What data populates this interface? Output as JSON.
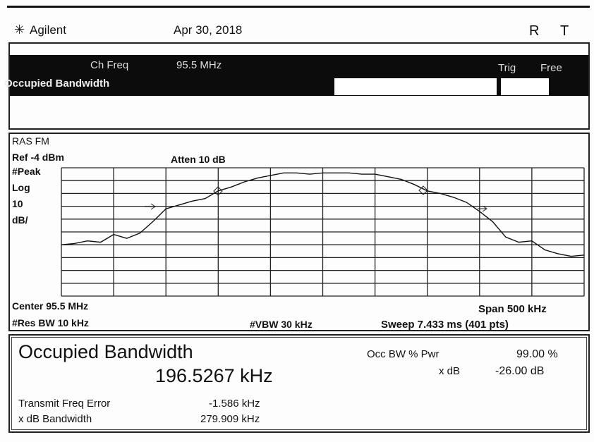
{
  "header": {
    "brand": "Agilent",
    "date": "Apr 30, 2018",
    "flags": [
      "R",
      "T"
    ]
  },
  "bar": {
    "ch_freq_label": "Ch Freq",
    "ch_freq": "95.5 MHz",
    "mode": "Occupied Bandwidth",
    "trig_label": "Trig",
    "trig": "Free"
  },
  "plot": {
    "name": "RAS FM",
    "ref": "Ref -4 dBm",
    "atten": "Atten 10 dB",
    "detector": "#Peak",
    "scale": [
      "Log",
      "10",
      "dB/"
    ],
    "center": "Center 95.5 MHz",
    "span": "Span 500 kHz",
    "rbw": "#Res BW 10 kHz",
    "vbw": "#VBW 30 kHz",
    "sweep": "Sweep 7.433 ms (401 pts)",
    "ylim": [
      -104,
      -4
    ],
    "trace": [
      -64,
      -63,
      -61,
      -62,
      -56,
      -59,
      -55,
      -46,
      -36,
      -33,
      -30,
      -28,
      -22,
      -19,
      -15,
      -12,
      -10,
      -8,
      -8,
      -9,
      -8,
      -8,
      -8,
      -9,
      -9,
      -11,
      -13,
      -17,
      -22,
      -24,
      -27,
      -31,
      -38,
      -46,
      -58,
      -62,
      -61,
      -68,
      -71,
      -73,
      -72
    ]
  },
  "results": {
    "title": "Occupied Bandwidth",
    "value": "196.5267 kHz",
    "pwr_label": "Occ BW % Pwr",
    "pwr": "99.00 %",
    "xdb_label": "x dB",
    "xdb": "-26.00 dB",
    "tfe_label": "Transmit Freq Error",
    "tfe": "-1.586 kHz",
    "xdbbw_label": "x dB Bandwidth",
    "xdbbw": "279.909 kHz"
  }
}
